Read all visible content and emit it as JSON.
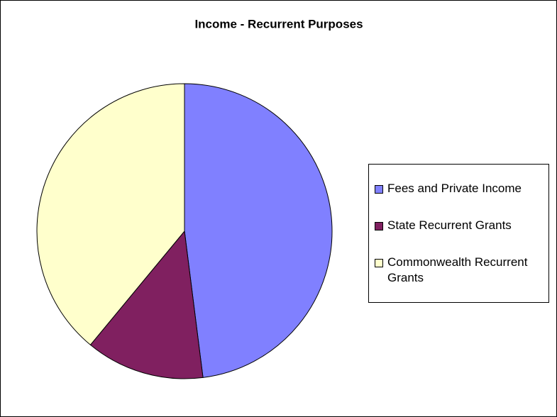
{
  "chart_data": {
    "type": "pie",
    "title": "Income - Recurrent Purposes",
    "categories": [
      "Fees and Private Income",
      "State Recurrent Grants",
      "Commonwealth Recurrent Grants"
    ],
    "values": [
      48,
      13,
      39
    ],
    "colors": [
      "#8080ff",
      "#802060",
      "#ffffcc"
    ],
    "legend": "right"
  }
}
